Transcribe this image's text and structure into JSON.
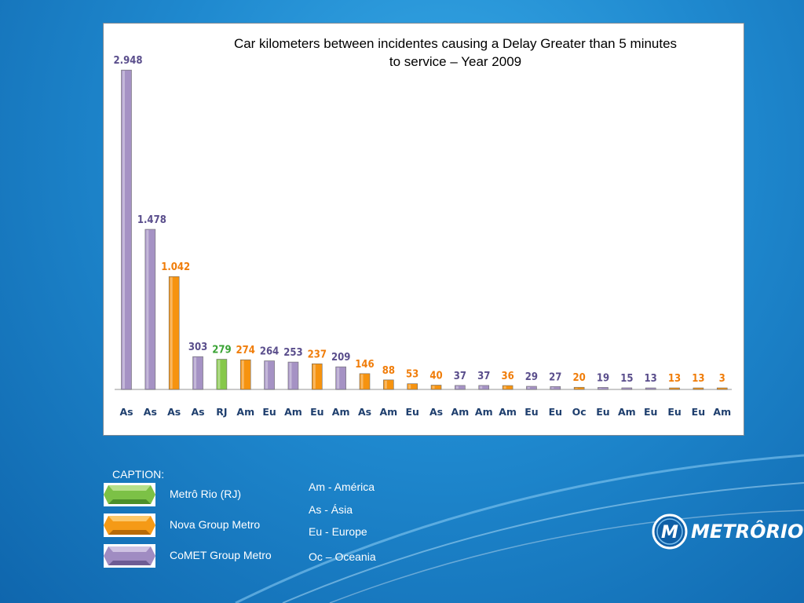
{
  "chart_data": {
    "type": "bar",
    "title_lines": [
      "Car kilometers between incidentes causing a Delay Greater than 5 minutes",
      "to service – Year 2009"
    ],
    "categories": [
      "As",
      "As",
      "As",
      "As",
      "RJ",
      "Am",
      "Eu",
      "Am",
      "Eu",
      "Am",
      "As",
      "Am",
      "Eu",
      "As",
      "Am",
      "Am",
      "Am",
      "Eu",
      "Eu",
      "Oc",
      "Eu",
      "Am",
      "Eu",
      "Eu",
      "Eu",
      "Am"
    ],
    "values": [
      2948,
      1478,
      1042,
      303,
      279,
      274,
      264,
      253,
      237,
      209,
      146,
      88,
      53,
      40,
      37,
      37,
      36,
      29,
      27,
      20,
      19,
      15,
      13,
      13,
      13,
      3
    ],
    "labels": [
      "2.948",
      "1.478",
      "1.042",
      "303",
      "279",
      "274",
      "264",
      "253",
      "237",
      "209",
      "146",
      "88",
      "53",
      "40",
      "37",
      "37",
      "36",
      "29",
      "27",
      "20",
      "19",
      "15",
      "13",
      "13",
      "13",
      "3"
    ],
    "groups": [
      "CoMET",
      "CoMET",
      "Nova",
      "CoMET",
      "RJ",
      "Nova",
      "CoMET",
      "CoMET",
      "Nova",
      "CoMET",
      "Nova",
      "Nova",
      "Nova",
      "Nova",
      "CoMET",
      "CoMET",
      "Nova",
      "CoMET",
      "CoMET",
      "Nova",
      "CoMET",
      "CoMET",
      "CoMET",
      "Nova",
      "Nova",
      "Nova"
    ],
    "ylim": [
      0,
      3000
    ],
    "grid": false,
    "colors": {
      "CoMET": "#a592c4",
      "Nova": "#f6930f",
      "RJ": "#86c84a",
      "CoMET_label": "#5a4e8c",
      "Nova_label": "#f07d0a",
      "RJ_label": "#3aa335"
    }
  },
  "legend": {
    "caption": "CAPTION:",
    "items": [
      {
        "label": "Metrô Rio (RJ)",
        "color": "#7cc146"
      },
      {
        "label": "Nova Group Metro",
        "color": "#f59a16"
      },
      {
        "label": "CoMET Group Metro",
        "color": "#a08cc2"
      }
    ],
    "regions": [
      "Am - América",
      "As - Ásia",
      "Eu - Europe",
      "Oc – Oceania"
    ]
  },
  "logo": {
    "text": "METRÔRIO",
    "letter": "M"
  }
}
